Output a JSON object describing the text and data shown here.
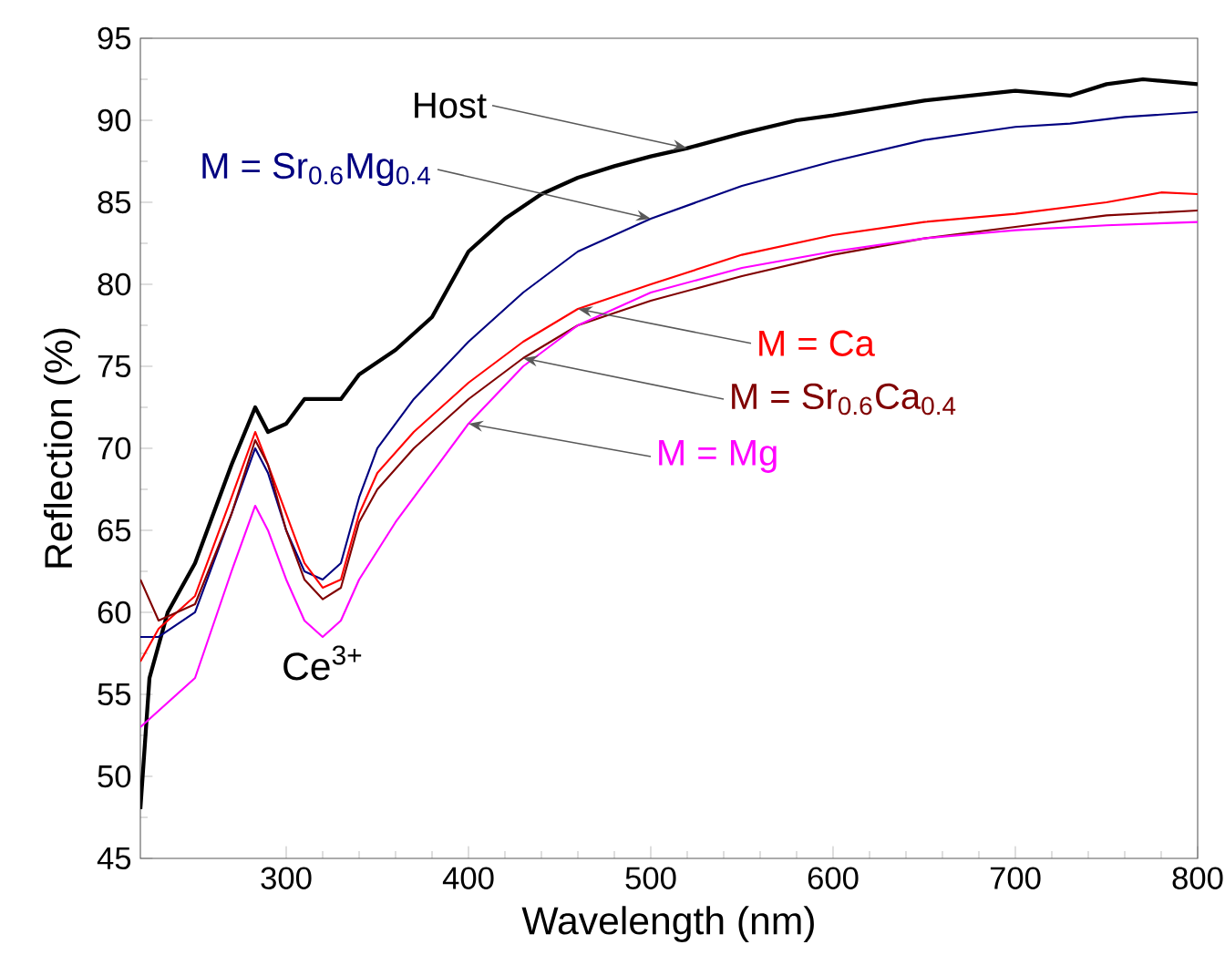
{
  "chart_data": {
    "type": "line",
    "xlabel": "Wavelength (nm)",
    "ylabel": "Reflection (%)",
    "xlim": [
      220,
      800
    ],
    "ylim": [
      45,
      95
    ],
    "xticks": [
      300,
      400,
      500,
      600,
      700,
      800
    ],
    "yticks": [
      45,
      50,
      55,
      60,
      65,
      70,
      75,
      80,
      85,
      90,
      95
    ],
    "grid": false,
    "legend": false,
    "marker": "none",
    "line_style": "solid",
    "series": [
      {
        "name": "Host",
        "color": "#000000",
        "x": [
          220,
          225,
          235,
          250,
          270,
          283,
          290,
          300,
          310,
          320,
          330,
          340,
          360,
          380,
          390,
          400,
          420,
          440,
          460,
          480,
          500,
          520,
          550,
          580,
          600,
          650,
          700,
          730,
          750,
          770,
          800
        ],
        "values": [
          48,
          56,
          60,
          63,
          69,
          72.5,
          71,
          71.5,
          73,
          73,
          73,
          74.5,
          76,
          78,
          80,
          82,
          84,
          85.5,
          86.5,
          87.2,
          87.8,
          88.3,
          89.2,
          90,
          90.3,
          91.2,
          91.8,
          91.5,
          92.2,
          92.5,
          92.2
        ]
      },
      {
        "name": "M = Sr$_{0.6}$Mg$_{0.4}$",
        "color": "#000080",
        "x": [
          220,
          230,
          250,
          270,
          283,
          290,
          300,
          310,
          320,
          330,
          340,
          350,
          370,
          400,
          430,
          460,
          500,
          550,
          600,
          650,
          700,
          730,
          760,
          800
        ],
        "values": [
          58.5,
          58.5,
          60,
          66,
          70,
          68.5,
          65,
          62.5,
          62,
          63,
          67,
          70,
          73,
          76.5,
          79.5,
          82,
          84,
          86,
          87.5,
          88.8,
          89.6,
          89.8,
          90.2,
          90.5
        ]
      },
      {
        "name": "M = Ca",
        "color": "#ff0000",
        "x": [
          220,
          230,
          250,
          270,
          283,
          290,
          300,
          310,
          320,
          330,
          340,
          350,
          370,
          400,
          430,
          460,
          500,
          550,
          600,
          650,
          700,
          750,
          780,
          800
        ],
        "values": [
          57,
          59,
          61,
          67,
          71,
          69,
          66,
          63,
          61.5,
          62,
          66,
          68.5,
          71,
          74,
          76.5,
          78.5,
          80,
          81.8,
          83,
          83.8,
          84.3,
          85,
          85.6,
          85.5
        ]
      },
      {
        "name": "M = Sr$_{0.6}$Ca$_{0.4}$",
        "color": "#800000",
        "x": [
          220,
          230,
          250,
          270,
          283,
          290,
          300,
          310,
          320,
          330,
          340,
          350,
          370,
          400,
          430,
          460,
          500,
          550,
          600,
          650,
          700,
          750,
          800
        ],
        "values": [
          62,
          59.5,
          60.5,
          66,
          70.5,
          69,
          65,
          62,
          60.8,
          61.5,
          65.5,
          67.5,
          70,
          73,
          75.5,
          77.5,
          79,
          80.5,
          81.8,
          82.8,
          83.5,
          84.2,
          84.5
        ]
      },
      {
        "name": "M = Mg",
        "color": "#ff00ff",
        "x": [
          220,
          230,
          250,
          270,
          283,
          290,
          300,
          310,
          320,
          330,
          340,
          360,
          400,
          430,
          460,
          500,
          550,
          600,
          650,
          700,
          750,
          800
        ],
        "values": [
          53,
          54,
          56,
          62.5,
          66.5,
          65,
          62,
          59.5,
          58.5,
          59.5,
          62,
          65.5,
          71.5,
          75,
          77.5,
          79.5,
          81,
          82,
          82.8,
          83.3,
          83.6,
          83.8
        ]
      }
    ],
    "annotations": [
      {
        "text": "Ce$^{3+}$",
        "x": 320,
        "y": 58.5
      }
    ]
  }
}
